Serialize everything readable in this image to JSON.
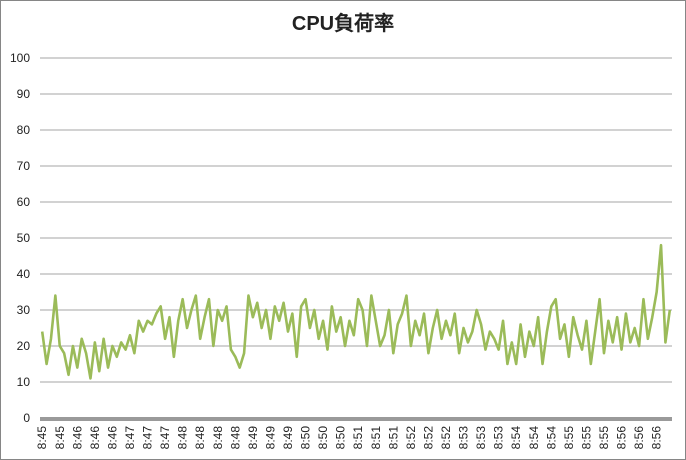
{
  "chart_data": {
    "type": "line",
    "title": "CPU負荷率",
    "categories": [
      "8:45",
      null,
      null,
      null,
      "8:45",
      null,
      null,
      null,
      "8:46",
      null,
      null,
      null,
      "8:46",
      null,
      null,
      null,
      "8:46",
      null,
      null,
      null,
      "8:47",
      null,
      null,
      null,
      "8:47",
      null,
      null,
      null,
      "8:47",
      null,
      null,
      null,
      "8:48",
      null,
      null,
      null,
      "8:48",
      null,
      null,
      null,
      "8:48",
      null,
      null,
      null,
      "8:48",
      null,
      null,
      null,
      "8:49",
      null,
      null,
      null,
      "8:49",
      null,
      null,
      null,
      "8:49",
      null,
      null,
      null,
      "8:50",
      null,
      null,
      null,
      "8:50",
      null,
      null,
      null,
      "8:50",
      null,
      null,
      null,
      "8:51",
      null,
      null,
      null,
      "8:51",
      null,
      null,
      null,
      "8:51",
      null,
      null,
      null,
      "8:52",
      null,
      null,
      null,
      "8:52",
      null,
      null,
      null,
      "8:52",
      null,
      null,
      null,
      "8:53",
      null,
      null,
      null,
      "8:53",
      null,
      null,
      null,
      "8:53",
      null,
      null,
      null,
      "8:54",
      null,
      null,
      null,
      "8:54",
      null,
      null,
      null,
      "8:54",
      null,
      null,
      null,
      "8:55",
      null,
      null,
      null,
      "8:55",
      null,
      null,
      null,
      "8:55",
      null,
      null,
      null,
      "8:56",
      null,
      null,
      null,
      "8:56",
      null,
      null,
      null,
      "8:56",
      null,
      null,
      null
    ],
    "values": [
      24,
      15,
      22,
      34,
      20,
      18,
      12,
      20,
      14,
      22,
      18,
      11,
      21,
      13,
      22,
      14,
      20,
      17,
      21,
      19,
      23,
      18,
      27,
      24,
      27,
      26,
      29,
      31,
      22,
      28,
      17,
      27,
      33,
      25,
      30,
      34,
      22,
      28,
      33,
      20,
      30,
      27,
      31,
      19,
      17,
      14,
      18,
      34,
      28,
      32,
      25,
      30,
      22,
      31,
      27,
      32,
      24,
      29,
      17,
      31,
      33,
      25,
      30,
      22,
      27,
      19,
      31,
      24,
      28,
      20,
      27,
      23,
      33,
      30,
      20,
      34,
      27,
      20,
      23,
      30,
      18,
      26,
      29,
      34,
      20,
      27,
      23,
      29,
      18,
      25,
      30,
      22,
      27,
      23,
      29,
      18,
      25,
      21,
      24,
      30,
      26,
      19,
      24,
      22,
      19,
      27,
      15,
      21,
      15,
      26,
      17,
      24,
      20,
      28,
      15,
      24,
      31,
      33,
      22,
      26,
      17,
      28,
      23,
      19,
      27,
      15,
      24,
      33,
      18,
      27,
      21,
      28,
      19,
      29,
      21,
      25,
      20,
      33,
      22,
      28,
      35,
      48,
      21,
      30
    ],
    "color": "#9bbb59",
    "ylim": [
      0,
      100
    ],
    "yticks": [
      0,
      10,
      20,
      30,
      40,
      50,
      60,
      70,
      80,
      90,
      100
    ],
    "grid": true
  }
}
